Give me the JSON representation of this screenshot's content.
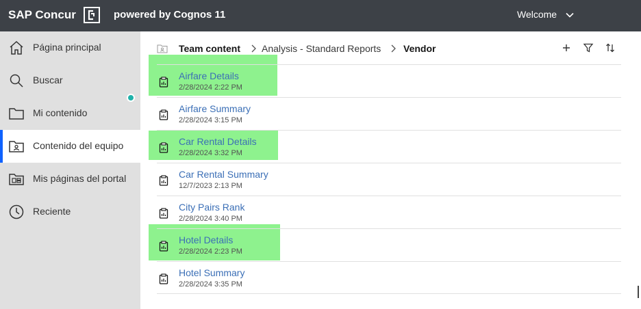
{
  "header": {
    "brand": "SAP Concur",
    "powered": "powered by Cognos 11",
    "welcome": "Welcome"
  },
  "sidebar": {
    "items": [
      {
        "label": "Página principal",
        "icon": "home-icon"
      },
      {
        "label": "Buscar",
        "icon": "search-icon"
      },
      {
        "label": "Mi contenido",
        "icon": "folder-icon"
      },
      {
        "label": "Contenido del equipo",
        "icon": "team-folder-icon",
        "active": true
      },
      {
        "label": "Mis páginas del portal",
        "icon": "portal-icon"
      },
      {
        "label": "Reciente",
        "icon": "clock-icon"
      }
    ]
  },
  "breadcrumb": {
    "root": "Team content",
    "middle": "Analysis - Standard Reports",
    "current": "Vendor"
  },
  "reports": [
    {
      "name": "Airfare Details",
      "date": "2/28/2024 2:22 PM",
      "highlighted": true
    },
    {
      "name": "Airfare Summary",
      "date": "2/28/2024 3:15 PM",
      "highlighted": false
    },
    {
      "name": "Car Rental Details",
      "date": "2/28/2024 3:32 PM",
      "highlighted": true
    },
    {
      "name": "Car Rental Summary",
      "date": "12/7/2023 2:13 PM",
      "highlighted": false
    },
    {
      "name": "City Pairs Rank",
      "date": "2/28/2024 3:40 PM",
      "highlighted": false
    },
    {
      "name": "Hotel Details",
      "date": "2/28/2024 2:23 PM",
      "highlighted": true
    },
    {
      "name": "Hotel Summary",
      "date": "2/28/2024 3:35 PM",
      "highlighted": false
    }
  ],
  "colors": {
    "topbar": "#3d4147",
    "sidebar": "#e0e0e0",
    "link": "#3b6fb6",
    "highlight": "#8ef28e",
    "notification": "#20b2aa"
  }
}
